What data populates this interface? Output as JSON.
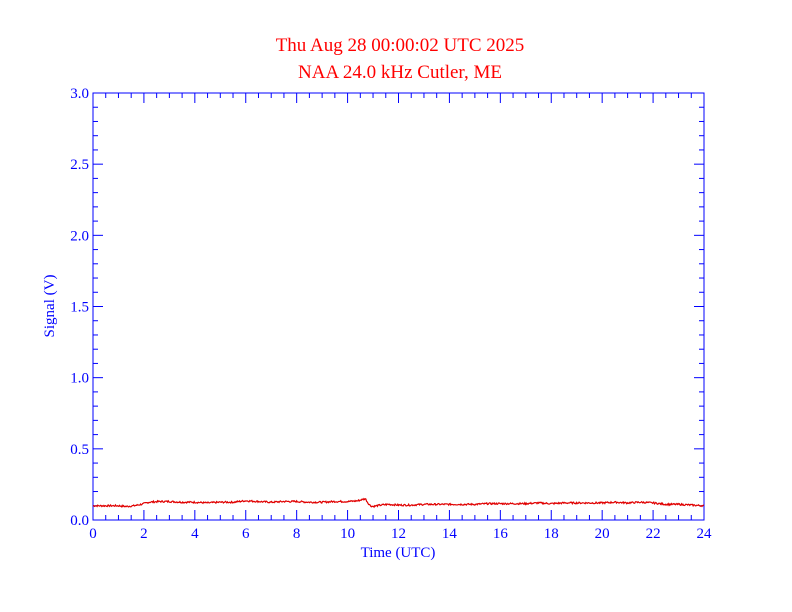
{
  "chart_data": {
    "type": "line",
    "title": "Thu Aug 28 00:00:02 UTC 2025",
    "subtitle": "NAA 24.0 kHz Cutler, ME",
    "xlabel": "Time (UTC)",
    "ylabel": "Signal (V)",
    "xlim": [
      0,
      24
    ],
    "ylim": [
      0,
      3.0
    ],
    "xticks": [
      0,
      2,
      4,
      6,
      8,
      10,
      12,
      14,
      16,
      18,
      20,
      22,
      24
    ],
    "xtick_labels": [
      "0",
      "2",
      "4",
      "6",
      "8",
      "10",
      "12",
      "14",
      "16",
      "18",
      "20",
      "22",
      "24"
    ],
    "yticks": [
      0,
      0.5,
      1.0,
      1.5,
      2.0,
      2.5,
      3.0
    ],
    "ytick_labels": [
      "0.0",
      "0.5",
      "1.0",
      "1.5",
      "2.0",
      "2.5",
      "3.0"
    ],
    "x_minor_per_major": 4,
    "y_minor_per_major": 5,
    "grid": false,
    "series": [
      {
        "x": [
          0,
          0.5,
          1.0,
          1.3,
          1.6,
          1.9,
          2.2,
          2.6,
          3.0,
          3.5,
          4.0,
          4.5,
          5.0,
          5.5,
          6.0,
          6.5,
          7.0,
          7.5,
          8.0,
          8.5,
          9.0,
          9.5,
          10.0,
          10.4,
          10.7,
          10.8,
          10.9,
          11.0,
          11.3,
          11.6,
          12.0,
          12.5,
          13.0,
          13.5,
          14.0,
          14.5,
          15.0,
          15.5,
          16.0,
          16.5,
          17.0,
          17.5,
          18.0,
          18.5,
          19.0,
          19.5,
          20.0,
          20.5,
          21.0,
          21.5,
          22.0,
          22.5,
          23.0,
          23.5,
          24.0
        ],
        "values": [
          0.1,
          0.1,
          0.1,
          0.095,
          0.1,
          0.11,
          0.125,
          0.13,
          0.13,
          0.125,
          0.125,
          0.12,
          0.125,
          0.125,
          0.135,
          0.13,
          0.125,
          0.13,
          0.13,
          0.125,
          0.125,
          0.13,
          0.13,
          0.135,
          0.15,
          0.12,
          0.1,
          0.095,
          0.105,
          0.11,
          0.105,
          0.105,
          0.11,
          0.11,
          0.11,
          0.11,
          0.11,
          0.115,
          0.115,
          0.115,
          0.115,
          0.12,
          0.115,
          0.12,
          0.12,
          0.12,
          0.12,
          0.125,
          0.12,
          0.125,
          0.12,
          0.11,
          0.11,
          0.105,
          0.1
        ]
      }
    ]
  },
  "colors": {
    "title": "#ff0000",
    "axis": "#0000ff",
    "series": "#e00000",
    "background": "#ffffff"
  }
}
